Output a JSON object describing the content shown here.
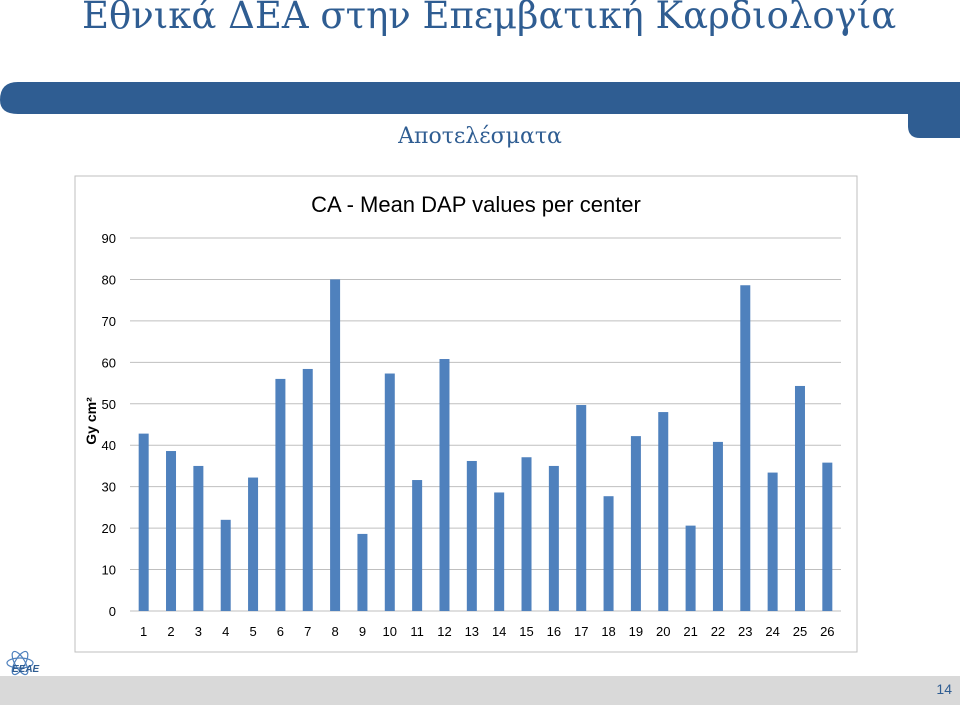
{
  "slide": {
    "title": "Εθνικά ΔΕΑ στην Επεμβατική Καρδιολογία",
    "subtitle": "Αποτελέσματα",
    "page_number": "14",
    "logo_text": "ΕΕΑΕ"
  },
  "colors": {
    "title": "#2f5d92",
    "banner": "#2f5d92",
    "bar": "#4f81bd",
    "footer": "#d9d9d9"
  },
  "chart_data": {
    "type": "bar",
    "title": "CA - Mean DAP values per center",
    "xlabel": "",
    "ylabel": "Gy cm²",
    "ylim": [
      0,
      90
    ],
    "yticks": [
      0,
      10,
      20,
      30,
      40,
      50,
      60,
      70,
      80,
      90
    ],
    "grid": true,
    "legend": "none",
    "categories": [
      "1",
      "2",
      "3",
      "4",
      "5",
      "6",
      "7",
      "8",
      "9",
      "10",
      "11",
      "12",
      "13",
      "14",
      "15",
      "16",
      "17",
      "18",
      "19",
      "20",
      "21",
      "22",
      "23",
      "24",
      "25",
      "26"
    ],
    "values": [
      42.8,
      38.6,
      35.0,
      22.0,
      32.2,
      56.0,
      58.4,
      80.0,
      18.6,
      57.3,
      31.6,
      60.8,
      36.2,
      28.6,
      37.1,
      35.0,
      49.7,
      27.7,
      42.2,
      48.0,
      20.6,
      40.8,
      78.6,
      33.4,
      54.3,
      35.8
    ]
  }
}
